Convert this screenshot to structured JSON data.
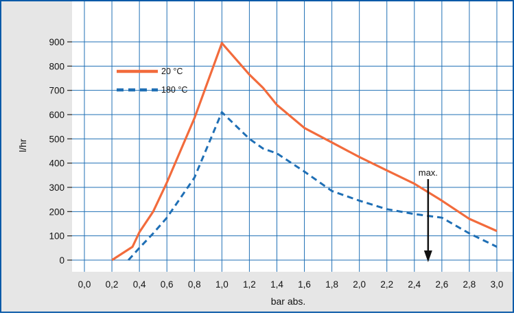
{
  "chart_data": {
    "type": "line",
    "title": "",
    "xlabel": "bar abs.",
    "ylabel": "l/hr",
    "xlim": [
      0.0,
      3.0
    ],
    "ylim": [
      0,
      900
    ],
    "xticks": [
      "0,0",
      "0,2",
      "0,4",
      "0,6",
      "0,8",
      "1,0",
      "1,2",
      "1,4",
      "1,6",
      "1,8",
      "2,0",
      "2,2",
      "2,4",
      "2,6",
      "2,8",
      "3,0"
    ],
    "yticks": [
      "0",
      "100",
      "200",
      "300",
      "400",
      "500",
      "600",
      "700",
      "800",
      "900"
    ],
    "grid": true,
    "legend_position": "top-left",
    "series": [
      {
        "name": "20 °C",
        "color": "#f26b3c",
        "style": "solid",
        "x": [
          0.2,
          0.35,
          0.4,
          0.5,
          0.6,
          0.8,
          1.0,
          1.2,
          1.3,
          1.4,
          1.6,
          1.8,
          2.0,
          2.2,
          2.4,
          2.6,
          2.8,
          3.0
        ],
        "y": [
          0,
          55,
          115,
          200,
          320,
          585,
          895,
          765,
          710,
          640,
          545,
          485,
          425,
          370,
          315,
          245,
          170,
          120
        ]
      },
      {
        "name": "180 °C",
        "color": "#1f6fb5",
        "style": "dashed",
        "x": [
          0.32,
          0.4,
          0.5,
          0.6,
          0.8,
          1.0,
          1.2,
          1.3,
          1.4,
          1.6,
          1.8,
          2.0,
          2.2,
          2.4,
          2.6,
          2.8,
          3.0
        ],
        "y": [
          0,
          50,
          110,
          175,
          340,
          610,
          500,
          460,
          440,
          365,
          285,
          245,
          210,
          190,
          175,
          110,
          55
        ]
      }
    ],
    "annotations": [
      {
        "text": "max.",
        "x": 2.5,
        "arrow_from": 300,
        "arrow_to": 0
      }
    ]
  }
}
